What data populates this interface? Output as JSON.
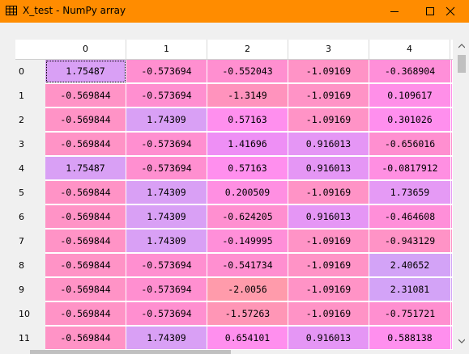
{
  "window": {
    "title": "X_test - NumPy array",
    "icon": "table-icon",
    "controls": [
      "minimize-icon",
      "maximize-icon",
      "close-icon"
    ]
  },
  "columns": [
    "0",
    "1",
    "2",
    "3",
    "4"
  ],
  "rows": [
    {
      "label": "0",
      "cells": [
        {
          "v": "1.75487",
          "c": "#d9a0f5"
        },
        {
          "v": "-0.573694",
          "c": "#ff8fd0"
        },
        {
          "v": "-0.552043",
          "c": "#ff8fd0"
        },
        {
          "v": "-1.09169",
          "c": "#ff93c6"
        },
        {
          "v": "-0.368904",
          "c": "#ff8fd9"
        }
      ]
    },
    {
      "label": "1",
      "cells": [
        {
          "v": "-0.569844",
          "c": "#ff93c6"
        },
        {
          "v": "-0.573694",
          "c": "#ff8fd0"
        },
        {
          "v": "-1.3149",
          "c": "#ff93bd"
        },
        {
          "v": "-1.09169",
          "c": "#ff93c6"
        },
        {
          "v": "0.109617",
          "c": "#ff8fe8"
        }
      ]
    },
    {
      "label": "2",
      "cells": [
        {
          "v": "-0.569844",
          "c": "#ff93c6"
        },
        {
          "v": "1.74309",
          "c": "#d9a0f5"
        },
        {
          "v": "0.57163",
          "c": "#ff8fee"
        },
        {
          "v": "-1.09169",
          "c": "#ff93c6"
        },
        {
          "v": "0.301026",
          "c": "#ff8fee"
        }
      ]
    },
    {
      "label": "3",
      "cells": [
        {
          "v": "-0.569844",
          "c": "#ff93c6"
        },
        {
          "v": "-0.573694",
          "c": "#ff8fd0"
        },
        {
          "v": "1.41696",
          "c": "#ee8ff5"
        },
        {
          "v": "0.916013",
          "c": "#e596f5"
        },
        {
          "v": "-0.656016",
          "c": "#ff8fd0"
        }
      ]
    },
    {
      "label": "4",
      "cells": [
        {
          "v": "1.75487",
          "c": "#d9a0f5"
        },
        {
          "v": "-0.573694",
          "c": "#ff8fd0"
        },
        {
          "v": "0.57163",
          "c": "#ff8fee"
        },
        {
          "v": "0.916013",
          "c": "#e596f5"
        },
        {
          "v": "-0.0817912",
          "c": "#ff8fe2"
        }
      ]
    },
    {
      "label": "5",
      "cells": [
        {
          "v": "-0.569844",
          "c": "#ff93c6"
        },
        {
          "v": "1.74309",
          "c": "#d9a0f5"
        },
        {
          "v": "0.200509",
          "c": "#ff8fe2"
        },
        {
          "v": "-1.09169",
          "c": "#ff93c6"
        },
        {
          "v": "1.73659",
          "c": "#e59af5"
        }
      ]
    },
    {
      "label": "6",
      "cells": [
        {
          "v": "-0.569844",
          "c": "#ff93c6"
        },
        {
          "v": "1.74309",
          "c": "#d9a0f5"
        },
        {
          "v": "-0.624205",
          "c": "#ff8fd0"
        },
        {
          "v": "0.916013",
          "c": "#e596f5"
        },
        {
          "v": "-0.464608",
          "c": "#ff8fd9"
        }
      ]
    },
    {
      "label": "7",
      "cells": [
        {
          "v": "-0.569844",
          "c": "#ff93c6"
        },
        {
          "v": "1.74309",
          "c": "#d9a0f5"
        },
        {
          "v": "-0.149995",
          "c": "#ff8fd9"
        },
        {
          "v": "-1.09169",
          "c": "#ff93c6"
        },
        {
          "v": "-0.943129",
          "c": "#ff93c6"
        }
      ]
    },
    {
      "label": "8",
      "cells": [
        {
          "v": "-0.569844",
          "c": "#ff93c6"
        },
        {
          "v": "-0.573694",
          "c": "#ff8fd0"
        },
        {
          "v": "-0.541734",
          "c": "#ff8fd0"
        },
        {
          "v": "-1.09169",
          "c": "#ff93c6"
        },
        {
          "v": "2.40652",
          "c": "#d3a3f7"
        }
      ]
    },
    {
      "label": "9",
      "cells": [
        {
          "v": "-0.569844",
          "c": "#ff93c6"
        },
        {
          "v": "-0.573694",
          "c": "#ff8fd0"
        },
        {
          "v": "-2.0056",
          "c": "#ff9bab"
        },
        {
          "v": "-1.09169",
          "c": "#ff93c6"
        },
        {
          "v": "2.31081",
          "c": "#d3a3f7"
        }
      ]
    },
    {
      "label": "10",
      "cells": [
        {
          "v": "-0.569844",
          "c": "#ff93c6"
        },
        {
          "v": "-0.573694",
          "c": "#ff8fd0"
        },
        {
          "v": "-1.57263",
          "c": "#ff96b6"
        },
        {
          "v": "-1.09169",
          "c": "#ff93c6"
        },
        {
          "v": "-0.751721",
          "c": "#ff8fd0"
        }
      ]
    },
    {
      "label": "11",
      "cells": [
        {
          "v": "-0.569844",
          "c": "#ff93c6"
        },
        {
          "v": "1.74309",
          "c": "#d9a0f5"
        },
        {
          "v": "0.654101",
          "c": "#ff8fee"
        },
        {
          "v": "0.916013",
          "c": "#e596f5"
        },
        {
          "v": "0.588138",
          "c": "#ff8fee"
        }
      ]
    }
  ]
}
